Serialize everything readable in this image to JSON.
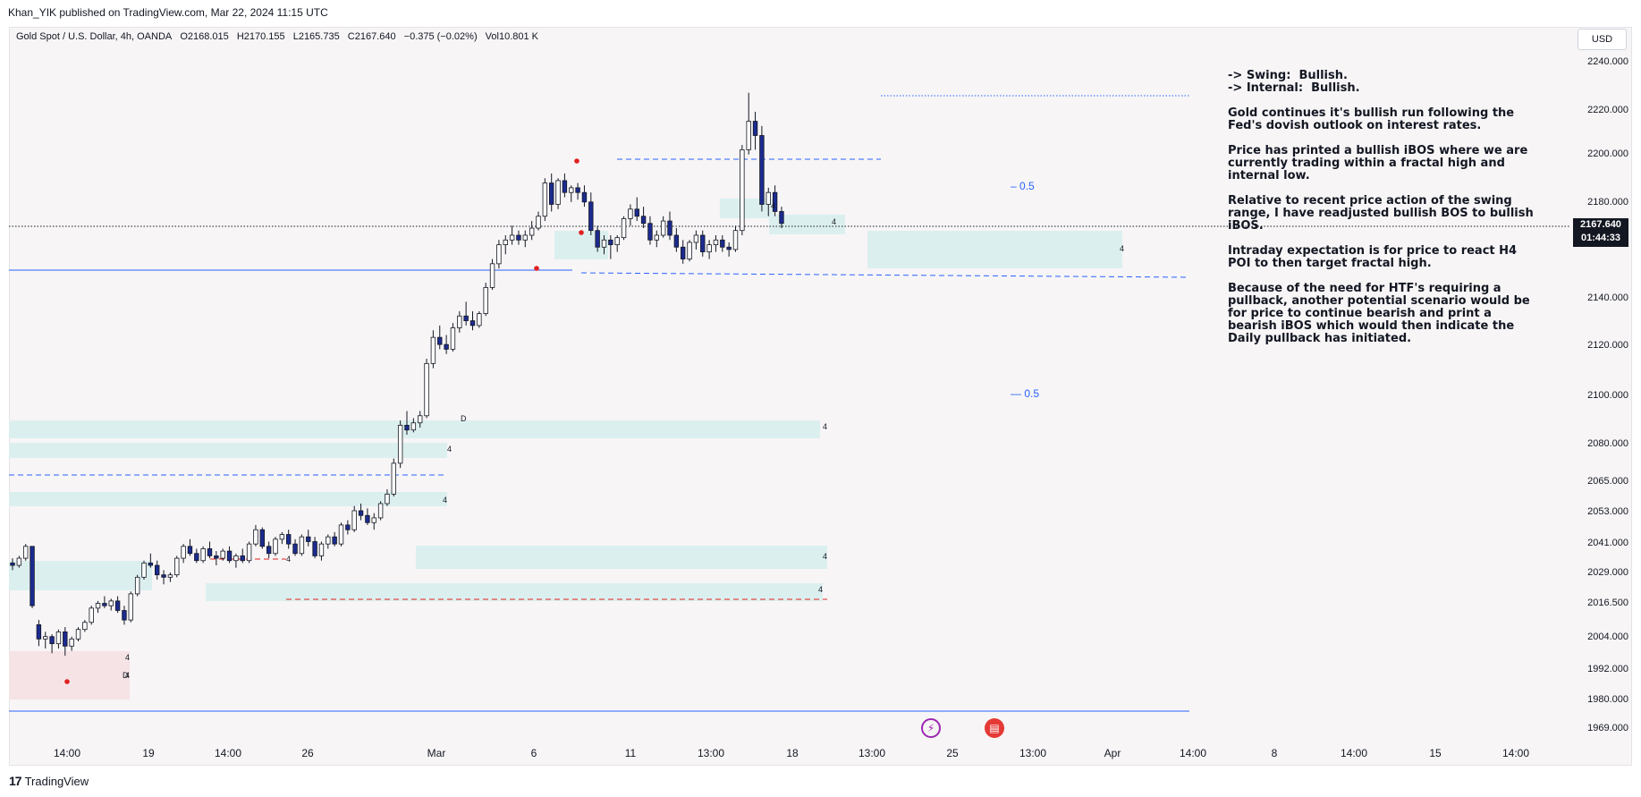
{
  "header": {
    "publisher": "Khan_YIK published on TradingView.com, Mar 22, 2024 11:15 UTC"
  },
  "legend": {
    "symbol": "Gold Spot / U.S. Dollar, 4h, OANDA",
    "open": "O2168.015",
    "high": "H2170.155",
    "low": "L2165.735",
    "close": "C2167.640",
    "change": "−0.375 (−0.02%)",
    "volume": "Vol10.801 K"
  },
  "currency_button": "USD",
  "current_price": {
    "price": "2167.640",
    "countdown": "01:44:33"
  },
  "notes": [
    "-> Swing:  Bullish.",
    "-> Internal:  Bullish.",
    "Gold continues it's bullish run following the Fed's dovish outlook on interest rates.",
    "Price has printed a bullish iBOS where we are currently trading within a fractal high and internal low.",
    "Relative to recent price action of the swing range, I have readjusted bullish BOS to bullish iBOS.",
    "Intraday expectation is for price to react H4 POI to then target fractal high.",
    "Because of the need for HTF's requiring a pullback, another potential scenario would be for price to continue bearish and print a bearish iBOS which would then indicate the Daily pullback has initiated."
  ],
  "fib_labels": [
    "0.5",
    "0.5"
  ],
  "zone_labels": [
    "4",
    "4",
    "4",
    "4",
    "4",
    "4",
    "4",
    "4",
    "4",
    "4",
    "4",
    "D"
  ],
  "price_axis": [
    "2240.000",
    "2220.000",
    "2200.000",
    "2180.000",
    "2140.000",
    "2120.000",
    "2100.000",
    "2080.000",
    "2065.000",
    "2053.000",
    "2041.000",
    "2029.000",
    "2016.500",
    "2004.000",
    "1992.000",
    "1980.000",
    "1969.000"
  ],
  "time_axis": [
    "14:00",
    "19",
    "14:00",
    "26",
    "Mar",
    "6",
    "11",
    "13:00",
    "18",
    "13:00",
    "25",
    "13:00",
    "Apr",
    "14:00",
    "8",
    "14:00",
    "15",
    "14:00"
  ],
  "footer": {
    "brand": "TradingView"
  },
  "icons": {
    "flash": "lightning-icon",
    "flag": "us-flag-icon"
  },
  "colors": {
    "bull_candle": "#ffffff",
    "bear_candle": "#1c2b8f",
    "zone_teal": "#dcefef",
    "zone_pink": "#f6e3e6",
    "blue_line": "#2962ff",
    "red_line": "#e02020"
  },
  "chart_data": {
    "type": "candlestick",
    "title": "Gold Spot / U.S. Dollar, 4h, OANDA",
    "ylim": [
      1965,
      2245
    ],
    "current": 2167.64,
    "candles": [
      [
        2024,
        2026,
        2021,
        2023
      ],
      [
        2023,
        2027,
        2022,
        2026
      ],
      [
        2026,
        2032,
        2025,
        2031
      ],
      [
        2031,
        2031,
        2005,
        2006
      ],
      [
        1998,
        2000,
        1989,
        1992
      ],
      [
        1992,
        1995,
        1988,
        1993
      ],
      [
        1993,
        1994,
        1986,
        1990
      ],
      [
        1990,
        1996,
        1988,
        1995
      ],
      [
        1995,
        1997,
        1985,
        1989
      ],
      [
        1989,
        1993,
        1987,
        1992
      ],
      [
        1992,
        1997,
        1991,
        1996
      ],
      [
        1996,
        2000,
        1995,
        1999
      ],
      [
        1999,
        2006,
        1998,
        2005
      ],
      [
        2005,
        2008,
        2003,
        2007
      ],
      [
        2007,
        2010,
        2005,
        2006
      ],
      [
        2006,
        2009,
        2004,
        2008
      ],
      [
        2008,
        2010,
        2003,
        2004
      ],
      [
        2004,
        2006,
        1998,
        2000
      ],
      [
        2000,
        2012,
        1999,
        2011
      ],
      [
        2011,
        2019,
        2010,
        2018
      ],
      [
        2018,
        2025,
        2017,
        2024
      ],
      [
        2024,
        2028,
        2022,
        2023
      ],
      [
        2023,
        2025,
        2017,
        2019
      ],
      [
        2019,
        2021,
        2015,
        2018
      ],
      [
        2018,
        2020,
        2016,
        2019
      ],
      [
        2019,
        2027,
        2018,
        2026
      ],
      [
        2026,
        2032,
        2024,
        2031
      ],
      [
        2031,
        2034,
        2027,
        2028
      ],
      [
        2028,
        2030,
        2024,
        2025
      ],
      [
        2025,
        2031,
        2024,
        2030
      ],
      [
        2030,
        2033,
        2026,
        2027
      ],
      [
        2027,
        2029,
        2023,
        2026
      ],
      [
        2026,
        2030,
        2025,
        2029
      ],
      [
        2029,
        2031,
        2024,
        2025
      ],
      [
        2025,
        2028,
        2022,
        2027
      ],
      [
        2027,
        2030,
        2024,
        2025
      ],
      [
        2025,
        2033,
        2024,
        2032
      ],
      [
        2032,
        2040,
        2031,
        2038
      ],
      [
        2038,
        2039,
        2030,
        2031
      ],
      [
        2031,
        2033,
        2026,
        2028
      ],
      [
        2028,
        2035,
        2027,
        2034
      ],
      [
        2034,
        2037,
        2032,
        2036
      ],
      [
        2036,
        2038,
        2030,
        2032
      ],
      [
        2032,
        2034,
        2027,
        2028
      ],
      [
        2028,
        2036,
        2027,
        2035
      ],
      [
        2035,
        2038,
        2031,
        2033
      ],
      [
        2033,
        2035,
        2026,
        2027
      ],
      [
        2027,
        2033,
        2025,
        2032
      ],
      [
        2032,
        2036,
        2030,
        2035
      ],
      [
        2035,
        2037,
        2031,
        2032
      ],
      [
        2032,
        2041,
        2031,
        2040
      ],
      [
        2040,
        2042,
        2036,
        2038
      ],
      [
        2038,
        2048,
        2037,
        2046
      ],
      [
        2046,
        2049,
        2042,
        2044
      ],
      [
        2044,
        2047,
        2040,
        2041
      ],
      [
        2041,
        2045,
        2038,
        2043
      ],
      [
        2043,
        2050,
        2042,
        2049
      ],
      [
        2049,
        2055,
        2048,
        2053
      ],
      [
        2053,
        2068,
        2052,
        2066
      ],
      [
        2066,
        2084,
        2064,
        2082
      ],
      [
        2082,
        2088,
        2078,
        2080
      ],
      [
        2080,
        2085,
        2079,
        2083
      ],
      [
        2083,
        2088,
        2081,
        2086
      ],
      [
        2086,
        2110,
        2085,
        2108
      ],
      [
        2108,
        2122,
        2106,
        2119
      ],
      [
        2119,
        2124,
        2114,
        2116
      ],
      [
        2116,
        2120,
        2112,
        2114
      ],
      [
        2114,
        2125,
        2113,
        2123
      ],
      [
        2123,
        2130,
        2121,
        2128
      ],
      [
        2128,
        2134,
        2124,
        2126
      ],
      [
        2126,
        2130,
        2122,
        2124
      ],
      [
        2124,
        2130,
        2123,
        2129
      ],
      [
        2129,
        2142,
        2128,
        2140
      ],
      [
        2140,
        2152,
        2139,
        2150
      ],
      [
        2150,
        2160,
        2148,
        2158
      ],
      [
        2158,
        2162,
        2154,
        2160
      ],
      [
        2160,
        2166,
        2158,
        2162
      ],
      [
        2162,
        2164,
        2158,
        2160
      ],
      [
        2160,
        2164,
        2157,
        2162
      ],
      [
        2162,
        2168,
        2160,
        2165
      ],
      [
        2165,
        2172,
        2164,
        2170
      ],
      [
        2170,
        2186,
        2168,
        2184
      ],
      [
        2184,
        2188,
        2172,
        2175
      ],
      [
        2175,
        2186,
        2173,
        2185
      ],
      [
        2185,
        2188,
        2178,
        2180
      ],
      [
        2180,
        2183,
        2176,
        2182
      ],
      [
        2182,
        2184,
        2177,
        2180
      ],
      [
        2180,
        2183,
        2174,
        2176
      ],
      [
        2176,
        2180,
        2162,
        2164
      ],
      [
        2164,
        2166,
        2155,
        2157
      ],
      [
        2157,
        2162,
        2154,
        2160
      ],
      [
        2160,
        2162,
        2152,
        2158
      ],
      [
        2158,
        2162,
        2155,
        2161
      ],
      [
        2161,
        2170,
        2160,
        2169
      ],
      [
        2169,
        2175,
        2166,
        2173
      ],
      [
        2173,
        2178,
        2168,
        2170
      ],
      [
        2170,
        2174,
        2165,
        2167
      ],
      [
        2167,
        2170,
        2158,
        2160
      ],
      [
        2160,
        2164,
        2157,
        2162
      ],
      [
        2162,
        2170,
        2161,
        2168
      ],
      [
        2168,
        2172,
        2160,
        2162
      ],
      [
        2162,
        2165,
        2155,
        2157
      ],
      [
        2157,
        2160,
        2150,
        2152
      ],
      [
        2152,
        2160,
        2151,
        2159
      ],
      [
        2159,
        2164,
        2156,
        2162
      ],
      [
        2162,
        2164,
        2153,
        2155
      ],
      [
        2155,
        2160,
        2152,
        2158
      ],
      [
        2158,
        2162,
        2155,
        2160
      ],
      [
        2160,
        2162,
        2155,
        2157
      ],
      [
        2157,
        2159,
        2153,
        2156
      ],
      [
        2156,
        2166,
        2155,
        2164
      ],
      [
        2164,
        2200,
        2162,
        2198
      ],
      [
        2198,
        2222,
        2196,
        2210
      ],
      [
        2210,
        2214,
        2198,
        2204
      ],
      [
        2204,
        2208,
        2172,
        2175
      ],
      [
        2175,
        2182,
        2170,
        2180
      ],
      [
        2180,
        2183,
        2170,
        2172
      ],
      [
        2172,
        2174,
        2165,
        2167
      ]
    ]
  }
}
